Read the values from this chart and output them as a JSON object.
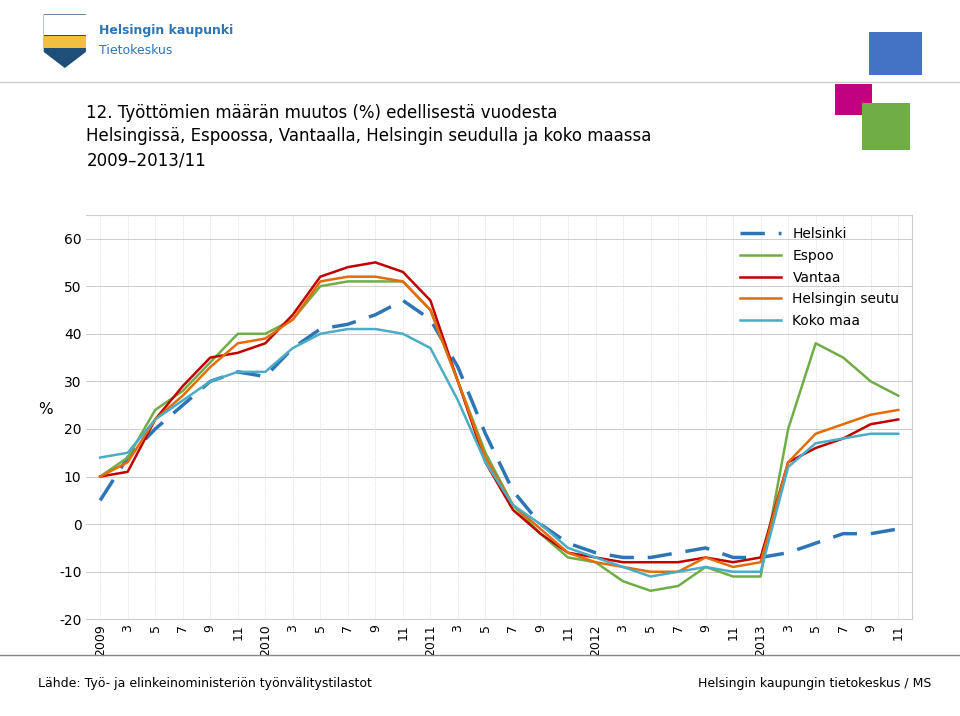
{
  "title_line1": "12. Työttömien määrän muutos (%) edellisestä vuodesta",
  "title_line2": "Helsingissä, Espoossa, Vantaalla, Helsingin seudulla ja koko maassa",
  "title_line3": "2009–2013/11",
  "ylabel": "%",
  "ylim": [
    -20,
    65
  ],
  "yticks": [
    -20,
    -10,
    0,
    10,
    20,
    30,
    40,
    50,
    60
  ],
  "footer_left": "Lähde: Työ- ja elinkeinoministeriön työnvälitystilastot",
  "footer_right": "Helsingin kaupungin tietokeskus / MS",
  "series_cfg": {
    "Helsinki": {
      "color": "#2E75B6",
      "dash": true,
      "lw": 2.5
    },
    "Espoo": {
      "color": "#70AD47",
      "dash": false,
      "lw": 1.8
    },
    "Vantaa": {
      "color": "#C00000",
      "dash": false,
      "lw": 1.8
    },
    "Helsingin seutu": {
      "color": "#E36C09",
      "dash": false,
      "lw": 1.8
    },
    "Koko maa": {
      "color": "#4BACC6",
      "dash": false,
      "lw": 1.8
    }
  },
  "series_order": [
    "Helsinki",
    "Espoo",
    "Vantaa",
    "Helsingin seutu",
    "Koko maa"
  ],
  "x_labels": [
    "2009",
    "3",
    "5",
    "7",
    "9",
    "11",
    "2010",
    "3",
    "5",
    "7",
    "9",
    "11",
    "2011",
    "3",
    "5",
    "7",
    "9",
    "11",
    "2012",
    "3",
    "5",
    "7",
    "9",
    "11",
    "2013",
    "3",
    "5",
    "7",
    "9",
    "11"
  ],
  "Helsinki": [
    5,
    14,
    20,
    25,
    30,
    32,
    31,
    37,
    41,
    42,
    44,
    47,
    43,
    33,
    19,
    7,
    0,
    -4,
    -6,
    -7,
    -7,
    -6,
    -5,
    -7,
    -7,
    -6,
    -4,
    -2,
    -2,
    -1
  ],
  "Espoo": [
    10,
    14,
    24,
    28,
    34,
    40,
    40,
    43,
    50,
    51,
    51,
    51,
    45,
    30,
    15,
    4,
    -2,
    -7,
    -8,
    -12,
    -14,
    -13,
    -9,
    -11,
    -11,
    20,
    38,
    35,
    30,
    27
  ],
  "Vantaa": [
    10,
    11,
    22,
    29,
    35,
    36,
    38,
    44,
    52,
    54,
    55,
    53,
    47,
    30,
    13,
    3,
    -2,
    -6,
    -7,
    -8,
    -8,
    -8,
    -7,
    -8,
    -7,
    13,
    16,
    18,
    21,
    22
  ],
  "Helsingin seutu": [
    10,
    13,
    22,
    27,
    33,
    38,
    39,
    43,
    51,
    52,
    52,
    51,
    45,
    30,
    14,
    4,
    -1,
    -6,
    -8,
    -9,
    -10,
    -10,
    -7,
    -9,
    -8,
    13,
    19,
    21,
    23,
    24
  ],
  "Koko maa": [
    14,
    15,
    22,
    26,
    30,
    32,
    32,
    37,
    40,
    41,
    41,
    40,
    37,
    26,
    13,
    4,
    0,
    -5,
    -7,
    -9,
    -11,
    -10,
    -9,
    -10,
    -10,
    12,
    17,
    18,
    19,
    19
  ],
  "logo_colors_top_right": [
    "#4472C4",
    "#C00080",
    "#70AD47"
  ],
  "header_logo_text1": "Helsingin kaupunki",
  "header_logo_text2": "Tietokeskus",
  "header_bg_color": "#ffffff",
  "header_line_color": "#cccccc",
  "footer_line_color": "#888888"
}
